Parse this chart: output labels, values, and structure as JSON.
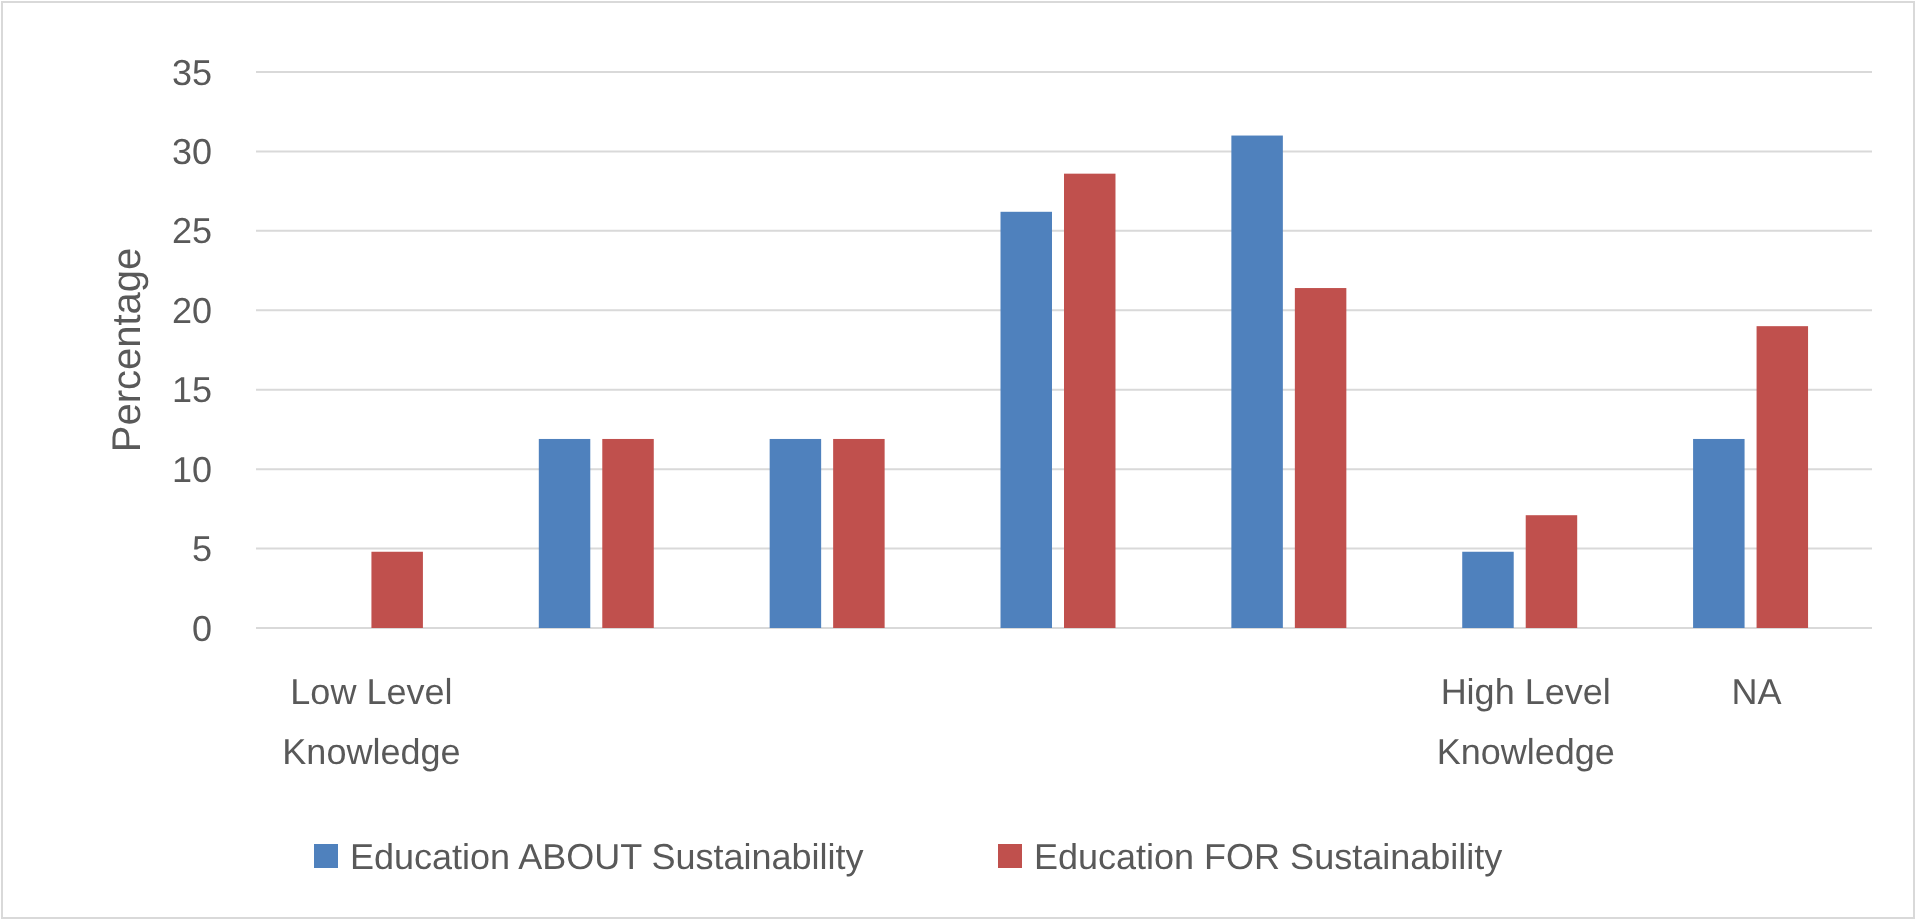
{
  "chart_data": {
    "type": "bar",
    "ylabel": "Percentage",
    "categories": [
      "Low Level Knowledge",
      null,
      null,
      null,
      null,
      "High Level Knowledge",
      "NA"
    ],
    "series": [
      {
        "name": "Education ABOUT Sustainability",
        "color": "#4f81bd",
        "values": [
          0,
          11.9,
          11.9,
          26.2,
          31,
          4.8,
          11.9
        ]
      },
      {
        "name": "Education FOR Sustainability",
        "color": "#c0504d",
        "values": [
          4.8,
          11.9,
          11.9,
          28.6,
          21.4,
          7.1,
          19
        ]
      }
    ],
    "ylim": [
      0,
      35
    ],
    "yticks": [
      0,
      5,
      10,
      15,
      20,
      25,
      30,
      35
    ],
    "grid": "y",
    "legend": "bottom"
  }
}
